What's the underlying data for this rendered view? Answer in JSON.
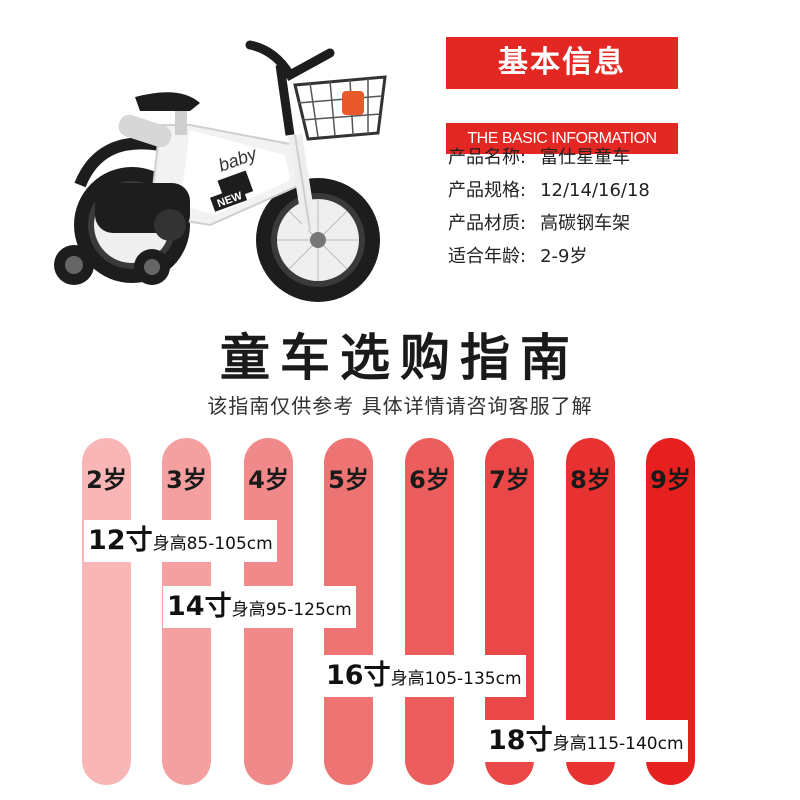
{
  "info": {
    "title": "基本信息",
    "subtitle": "THE BASIC INFORMATION",
    "rows": [
      {
        "key": "产品名称:",
        "value": "富仕星童车"
      },
      {
        "key": "产品规格:",
        "value": "12/14/16/18"
      },
      {
        "key": "产品材质:",
        "value": "高碳钢车架"
      },
      {
        "key": "适合年龄:",
        "value": "2-9岁"
      }
    ]
  },
  "bike": {
    "brand": "baby",
    "badge": "NEW",
    "frame_color": "#f2f2f2",
    "tire_color": "#1d1d1d",
    "accent_color": "#f0a020"
  },
  "guide": {
    "title": "童车选购指南",
    "subtitle": "该指南仅供参考 具体详情请咨询客服了解"
  },
  "ages": [
    {
      "label": "2岁",
      "color": "#f8b6b6"
    },
    {
      "label": "3岁",
      "color": "#f4a0a0"
    },
    {
      "label": "4岁",
      "color": "#f08a8a"
    },
    {
      "label": "5岁",
      "color": "#ee7474"
    },
    {
      "label": "6岁",
      "color": "#ec5e5e"
    },
    {
      "label": "7岁",
      "color": "#ea4848"
    },
    {
      "label": "8岁",
      "color": "#e83232"
    },
    {
      "label": "9岁",
      "color": "#e61f1f"
    }
  ],
  "sizes": [
    {
      "size": "12寸",
      "height": "身高85-105cm"
    },
    {
      "size": "14寸",
      "height": "身高95-125cm"
    },
    {
      "size": "16寸",
      "height": "身高105-135cm"
    },
    {
      "size": "18寸",
      "height": "身高115-140cm"
    }
  ]
}
